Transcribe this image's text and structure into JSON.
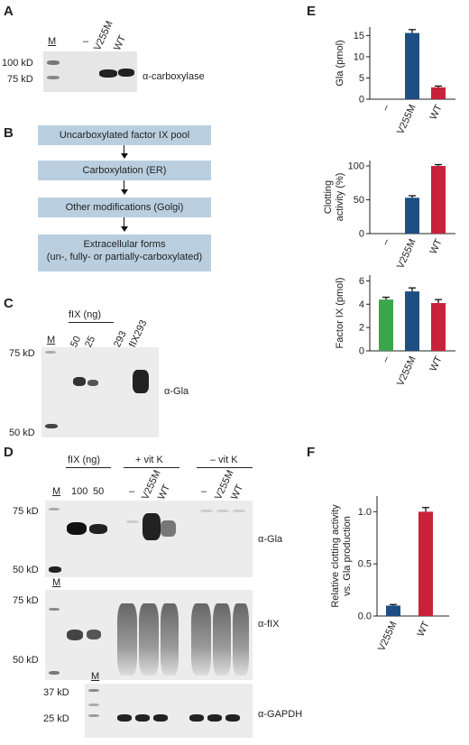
{
  "panel_a": {
    "letter": "A",
    "lane_labels": [
      "M",
      "–",
      "V255M",
      "WT"
    ],
    "markers": [
      "100 kD",
      "75 kD"
    ],
    "antibody": "α-carboxylase"
  },
  "panel_b": {
    "letter": "B",
    "steps": [
      "Uncarboxylated factor IX pool",
      "Carboxylation (ER)",
      "Other modifications (Golgi)",
      "Extracellular forms",
      "(un-, fully- or partially-carboxylated)"
    ]
  },
  "panel_c": {
    "letter": "C",
    "group_label": "fIX (ng)",
    "lane_labels": [
      "M",
      "50",
      "25",
      "293",
      "fIX293"
    ],
    "markers": [
      "75 kD",
      "50 kD"
    ],
    "antibody": "α-Gla"
  },
  "panel_d": {
    "letter": "D",
    "group_labels": [
      "fIX (ng)",
      "+ vit K",
      "– vit K"
    ],
    "lane_labels": [
      "M",
      "100",
      "50",
      "–",
      "V255M",
      "WT",
      "–",
      "V255M",
      "WT"
    ],
    "blot1_markers": [
      "75 kD",
      "50 kD"
    ],
    "blot1_antibody": "α-Gla",
    "blot2_lane_marker": "M",
    "blot2_markers": [
      "75 kD",
      "50 kD"
    ],
    "blot2_antibody": "α-fIX",
    "blot3_lane_marker": "M",
    "blot3_markers": [
      "37 kD",
      "25 kD"
    ],
    "blot3_antibody": "α-GAPDH"
  },
  "panel_e": {
    "letter": "E"
  },
  "panel_f": {
    "letter": "F"
  },
  "chart_data": [
    {
      "type": "bar",
      "categories": [
        "–",
        "V255M",
        "WT"
      ],
      "values": [
        0,
        15.6,
        2.8
      ],
      "errors": [
        0,
        0.8,
        0.3
      ],
      "colors": [
        "#3aa64a",
        "#1d4f84",
        "#c9213a"
      ],
      "ylabel": "Gla (pmol)",
      "ylim": [
        0,
        17
      ],
      "yticks": [
        0,
        5,
        10,
        15
      ]
    },
    {
      "type": "bar",
      "categories": [
        "–",
        "V255M",
        "WT"
      ],
      "values": [
        0,
        53,
        100
      ],
      "errors": [
        0,
        3,
        2
      ],
      "colors": [
        "#3aa64a",
        "#1d4f84",
        "#c9213a"
      ],
      "ylabel": "Clotting activity (%)",
      "ylabel_lines": [
        "Clotting",
        "activity (%)"
      ],
      "ylim": [
        0,
        108
      ],
      "yticks": [
        0,
        50,
        100
      ]
    },
    {
      "type": "bar",
      "categories": [
        "–",
        "V255M",
        "WT"
      ],
      "values": [
        4.4,
        5.1,
        4.1
      ],
      "errors": [
        0.2,
        0.3,
        0.3
      ],
      "colors": [
        "#3aa64a",
        "#1d4f84",
        "#c9213a"
      ],
      "ylabel": "Factor IX (pmol)",
      "ylim": [
        0,
        6.5
      ],
      "yticks": [
        0,
        2,
        4,
        6
      ]
    },
    {
      "type": "bar",
      "categories": [
        "V255M",
        "WT"
      ],
      "values": [
        0.1,
        1.0
      ],
      "errors": [
        0.01,
        0.04
      ],
      "colors": [
        "#1d4f84",
        "#c9213a"
      ],
      "ylabel": "Relative clotting activity vs. Gla production",
      "ylabel_lines": [
        "Relative clotting activity",
        "vs. Gla production"
      ],
      "ylim": [
        0,
        1.15
      ],
      "yticks": [
        0.0,
        0.5,
        1.0
      ],
      "ytick_labels": [
        "0.0",
        "0.5",
        "1.0"
      ]
    }
  ]
}
